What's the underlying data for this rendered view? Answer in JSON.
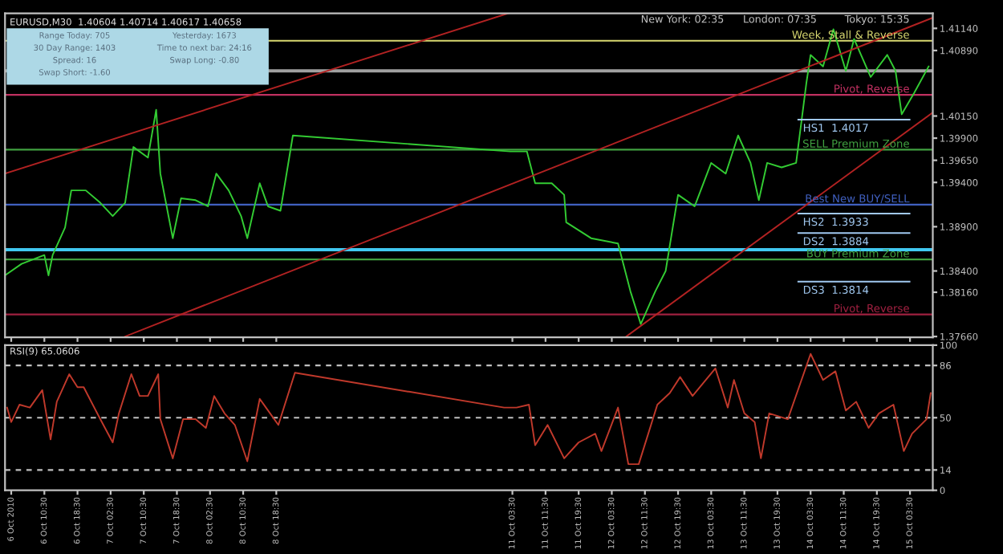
{
  "chart_data": [
    {
      "type": "line",
      "title": "EURUSD,M30  1.40604 1.40714 1.40617 1.40658",
      "tick_labels": "y",
      "legend": false,
      "grid": false,
      "xlim": [
        "2010-10-06T01:00",
        "2010-10-15T09:00"
      ],
      "ylim": [
        1.3765,
        1.4131
      ],
      "xticks": [
        {
          "value": "2010-10-06T02:30",
          "label": null
        },
        {
          "value": "2010-10-06T10:30",
          "label": null
        },
        {
          "value": "2010-10-06T18:30",
          "label": null
        },
        {
          "value": "2010-10-07T02:30",
          "label": null
        },
        {
          "value": "2010-10-07T10:30",
          "label": null
        },
        {
          "value": "2010-10-07T18:30",
          "label": null
        },
        {
          "value": "2010-10-08T02:30",
          "label": null
        },
        {
          "value": "2010-10-08T10:30",
          "label": null
        },
        {
          "value": "2010-10-08T18:30",
          "label": null
        },
        {
          "value": "2010-10-11T03:30",
          "label": null
        },
        {
          "value": "2010-10-11T11:30",
          "label": null
        },
        {
          "value": "2010-10-11T19:30",
          "label": null
        },
        {
          "value": "2010-10-12T03:30",
          "label": null
        },
        {
          "value": "2010-10-12T11:30",
          "label": null
        },
        {
          "value": "2010-10-12T19:30",
          "label": null
        },
        {
          "value": "2010-10-13T03:30",
          "label": null
        },
        {
          "value": "2010-10-13T11:30",
          "label": null
        },
        {
          "value": "2010-10-13T19:30",
          "label": null
        },
        {
          "value": "2010-10-14T03:30",
          "label": null
        },
        {
          "value": "2010-10-14T11:30",
          "label": null
        },
        {
          "value": "2010-10-14T19:30",
          "label": null
        },
        {
          "value": "2010-10-15T03:30",
          "label": null
        }
      ],
      "yticks": [
        {
          "value": 1.4114,
          "label": "1.41140"
        },
        {
          "value": 1.4089,
          "label": "1.40890"
        },
        {
          "value": 1.4015,
          "label": "1.40150"
        },
        {
          "value": 1.399,
          "label": "1.39900"
        },
        {
          "value": 1.3965,
          "label": "1.39650"
        },
        {
          "value": 1.394,
          "label": "1.39400"
        },
        {
          "value": 1.389,
          "label": "1.38900"
        },
        {
          "value": 1.384,
          "label": "1.38400"
        },
        {
          "value": 1.3816,
          "label": "1.38160"
        },
        {
          "value": 1.3766,
          "label": "1.37660"
        }
      ],
      "series": [
        {
          "color": "#33cc33",
          "x": [
            "2010-10-06T01:00",
            "2010-10-06T05:00",
            "2010-10-06T10:30",
            "2010-10-06T11:30",
            "2010-10-06T12:30",
            "2010-10-06T15:30",
            "2010-10-06T17:00",
            "2010-10-06T20:30",
            "2010-10-07T00:00",
            "2010-10-07T03:00",
            "2010-10-07T06:00",
            "2010-10-07T08:00",
            "2010-10-07T11:30",
            "2010-10-07T13:30",
            "2010-10-07T14:30",
            "2010-10-07T17:30",
            "2010-10-07T19:30",
            "2010-10-07T23:00",
            "2010-10-08T02:00",
            "2010-10-08T04:00",
            "2010-10-08T07:00",
            "2010-10-08T10:00",
            "2010-10-08T11:30",
            "2010-10-08T14:30",
            "2010-10-08T16:30",
            "2010-10-08T19:30",
            "2010-10-08T22:30",
            "2010-10-11T03:00",
            "2010-10-11T07:00",
            "2010-10-11T09:00",
            "2010-10-11T13:00",
            "2010-10-11T16:00",
            "2010-10-11T16:30",
            "2010-10-11T22:30",
            "2010-10-12T05:00",
            "2010-10-12T08:00",
            "2010-10-12T10:30",
            "2010-10-12T14:00",
            "2010-10-12T16:30",
            "2010-10-12T19:30",
            "2010-10-12T23:30",
            "2010-10-13T03:30",
            "2010-10-13T07:00",
            "2010-10-13T10:00",
            "2010-10-13T13:00",
            "2010-10-13T15:00",
            "2010-10-13T17:00",
            "2010-10-13T20:30",
            "2010-10-14T00:00",
            "2010-10-14T02:30",
            "2010-10-14T03:30",
            "2010-10-14T06:30",
            "2010-10-14T09:00",
            "2010-10-14T12:00",
            "2010-10-14T14:00",
            "2010-10-14T18:00",
            "2010-10-14T22:00",
            "2010-10-15T00:00",
            "2010-10-15T01:30",
            "2010-10-15T04:30",
            "2010-10-15T08:00"
          ],
          "values": [
            1.3835,
            1.3848,
            1.3858,
            1.3835,
            1.3858,
            1.3889,
            1.3931,
            1.3931,
            1.3917,
            1.3902,
            1.3917,
            1.398,
            1.3968,
            1.4022,
            1.395,
            1.3877,
            1.3922,
            1.392,
            1.3913,
            1.395,
            1.3931,
            1.3902,
            1.3877,
            1.3939,
            1.3913,
            1.3908,
            1.3993,
            1.3975,
            1.3975,
            1.3939,
            1.3939,
            1.3926,
            1.3895,
            1.3877,
            1.3871,
            1.3817,
            1.378,
            1.3817,
            1.384,
            1.3926,
            1.3913,
            1.3962,
            1.395,
            1.3993,
            1.3962,
            1.392,
            1.3962,
            1.3957,
            1.3962,
            1.4053,
            1.4084,
            1.4071,
            1.4113,
            1.4066,
            1.4102,
            1.4059,
            1.4084,
            1.4066,
            1.4017,
            1.4041,
            1.4071
          ]
        },
        {
          "color": "#b22222",
          "x": [
            "2010-10-06T01:00",
            "2010-10-11T02:30"
          ],
          "values": [
            1.395,
            1.4131
          ]
        },
        {
          "color": "#b22222",
          "x": [
            "2010-10-07T06:00",
            "2010-10-15T09:00"
          ],
          "values": [
            1.3766,
            1.4126
          ]
        },
        {
          "color": "#b22222",
          "x": [
            "2010-10-12T07:00",
            "2010-10-15T09:00"
          ],
          "values": [
            1.3766,
            1.4019
          ]
        }
      ],
      "ref_lines": [
        {
          "axis": "y",
          "value": 1.41,
          "label": "Week, Stall & Reverse",
          "color": "#d8d870"
        },
        {
          "axis": "y",
          "value": 1.4066,
          "color": "#a0a0a0"
        },
        {
          "axis": "y",
          "value": 1.4039,
          "label": "Pivot, Reverse",
          "color": "#c03060"
        },
        {
          "axis": "y",
          "value": 1.3977,
          "label": "SELL Premium Zone",
          "color": "#40a040"
        },
        {
          "axis": "y",
          "value": 1.3915,
          "label": "Best New BUY/SELL",
          "color": "#4060c0"
        },
        {
          "axis": "y",
          "value": 1.3864,
          "color": "#40c8f0"
        },
        {
          "axis": "y",
          "value": 1.3853,
          "label": "BUY Premium Zone",
          "color": "#40a040"
        },
        {
          "axis": "y",
          "value": 1.3791,
          "label": "Pivot, Reverse",
          "color": "#a02040"
        }
      ],
      "annotations": [
        "Tokyo: 15:35",
        "London: 07:35",
        "New York: 02:35",
        "Range Today: 705",
        "Yesterday: 1673",
        "30 Day Range: 1403",
        "Time to next bar: 24:16",
        "Spread: 16",
        "Swap Long: -0.80",
        "Swap Short: -1.60",
        "HS1  1.4017",
        "HS2  1.3933",
        "DS2  1.3884",
        "DS3  1.3814"
      ]
    },
    {
      "type": "line",
      "title": "RSI(9) 65.0606",
      "legend": false,
      "grid": false,
      "xlim": [
        "2010-10-06T01:00",
        "2010-10-15T09:00"
      ],
      "ylim": [
        0,
        100
      ],
      "yticks": [
        0,
        14,
        50,
        86,
        100
      ],
      "xticks": [
        {
          "value": "2010-10-06T02:30",
          "label": "6 Oct 2010"
        },
        {
          "value": "2010-10-06T10:30",
          "label": "6 Oct 10:30"
        },
        {
          "value": "2010-10-06T18:30",
          "label": "6 Oct 18:30"
        },
        {
          "value": "2010-10-07T02:30",
          "label": "7 Oct 02:30"
        },
        {
          "value": "2010-10-07T10:30",
          "label": "7 Oct 10:30"
        },
        {
          "value": "2010-10-07T18:30",
          "label": "7 Oct 18:30"
        },
        {
          "value": "2010-10-08T02:30",
          "label": "8 Oct 02:30"
        },
        {
          "value": "2010-10-08T10:30",
          "label": "8 Oct 10:30"
        },
        {
          "value": "2010-10-08T18:30",
          "label": "8 Oct 18:30"
        },
        {
          "value": "2010-10-11T03:30",
          "label": "11 Oct 03:30"
        },
        {
          "value": "2010-10-11T11:30",
          "label": "11 Oct 11:30"
        },
        {
          "value": "2010-10-11T19:30",
          "label": "11 Oct 19:30"
        },
        {
          "value": "2010-10-12T03:30",
          "label": "12 Oct 03:30"
        },
        {
          "value": "2010-10-12T11:30",
          "label": "12 Oct 11:30"
        },
        {
          "value": "2010-10-12T19:30",
          "label": "12 Oct 19:30"
        },
        {
          "value": "2010-10-13T03:30",
          "label": "13 Oct 03:30"
        },
        {
          "value": "2010-10-13T11:30",
          "label": "13 Oct 11:30"
        },
        {
          "value": "2010-10-13T19:30",
          "label": "13 Oct 19:30"
        },
        {
          "value": "2010-10-14T03:30",
          "label": "14 Oct 03:30"
        },
        {
          "value": "2010-10-14T11:30",
          "label": "14 Oct 11:30"
        },
        {
          "value": "2010-10-14T19:30",
          "label": "14 Oct 19:30"
        },
        {
          "value": "2010-10-15T03:30",
          "label": "15 Oct 03:30"
        }
      ],
      "series": [
        {
          "color": "#c0392b",
          "x": [
            "2010-10-06T01:30",
            "2010-10-06T02:30",
            "2010-10-06T04:30",
            "2010-10-06T07:00",
            "2010-10-06T10:00",
            "2010-10-06T12:00",
            "2010-10-06T13:30",
            "2010-10-06T16:30",
            "2010-10-06T18:30",
            "2010-10-06T20:00",
            "2010-10-07T00:00",
            "2010-10-07T03:00",
            "2010-10-07T04:30",
            "2010-10-07T07:30",
            "2010-10-07T09:30",
            "2010-10-07T11:30",
            "2010-10-07T14:00",
            "2010-10-07T14:30",
            "2010-10-07T17:30",
            "2010-10-07T20:00",
            "2010-10-07T23:00",
            "2010-10-08T01:30",
            "2010-10-08T03:30",
            "2010-10-08T06:00",
            "2010-10-08T08:30",
            "2010-10-08T11:30",
            "2010-10-08T14:30",
            "2010-10-08T16:00",
            "2010-10-08T19:00",
            "2010-10-08T23:00",
            "2010-10-11T01:30",
            "2010-10-11T04:30",
            "2010-10-11T07:30",
            "2010-10-11T09:00",
            "2010-10-11T12:00",
            "2010-10-11T16:00",
            "2010-10-11T19:30",
            "2010-10-11T23:30",
            "2010-10-12T01:00",
            "2010-10-12T05:00",
            "2010-10-12T07:30",
            "2010-10-12T10:00",
            "2010-10-12T14:30",
            "2010-10-12T17:30",
            "2010-10-12T20:00",
            "2010-10-12T23:00",
            "2010-10-13T04:30",
            "2010-10-13T07:30",
            "2010-10-13T09:00",
            "2010-10-13T11:30",
            "2010-10-13T14:00",
            "2010-10-13T15:30",
            "2010-10-13T17:30",
            "2010-10-13T22:00",
            "2010-10-14T03:30",
            "2010-10-14T06:30",
            "2010-10-14T09:30",
            "2010-10-14T12:00",
            "2010-10-14T14:30",
            "2010-10-14T17:30",
            "2010-10-14T20:00",
            "2010-10-14T23:30",
            "2010-10-15T02:00",
            "2010-10-15T04:00",
            "2010-10-15T07:30",
            "2010-10-15T08:30"
          ],
          "values": [
            57,
            47,
            59,
            57,
            69,
            35,
            61,
            80,
            71,
            71,
            49,
            33,
            53,
            80,
            65,
            65,
            80,
            49,
            22,
            49,
            49,
            43,
            65,
            53,
            45,
            20,
            63,
            57,
            45,
            81,
            57,
            57,
            59,
            31,
            45,
            22,
            33,
            39,
            27,
            57,
            18,
            18,
            59,
            67,
            78,
            65,
            84,
            57,
            76,
            53,
            47,
            22,
            53,
            49,
            94,
            76,
            82,
            55,
            61,
            43,
            53,
            59,
            27,
            39,
            49,
            67
          ]
        }
      ],
      "ref_lines": [
        {
          "axis": "y",
          "value": 86,
          "color": "#c0c0c0",
          "line_style": "dashed"
        },
        {
          "axis": "y",
          "value": 50,
          "color": "#c0c0c0",
          "line_style": "dashed"
        },
        {
          "axis": "y",
          "value": 14,
          "color": "#c0c0c0",
          "line_style": "dashed"
        }
      ]
    }
  ]
}
